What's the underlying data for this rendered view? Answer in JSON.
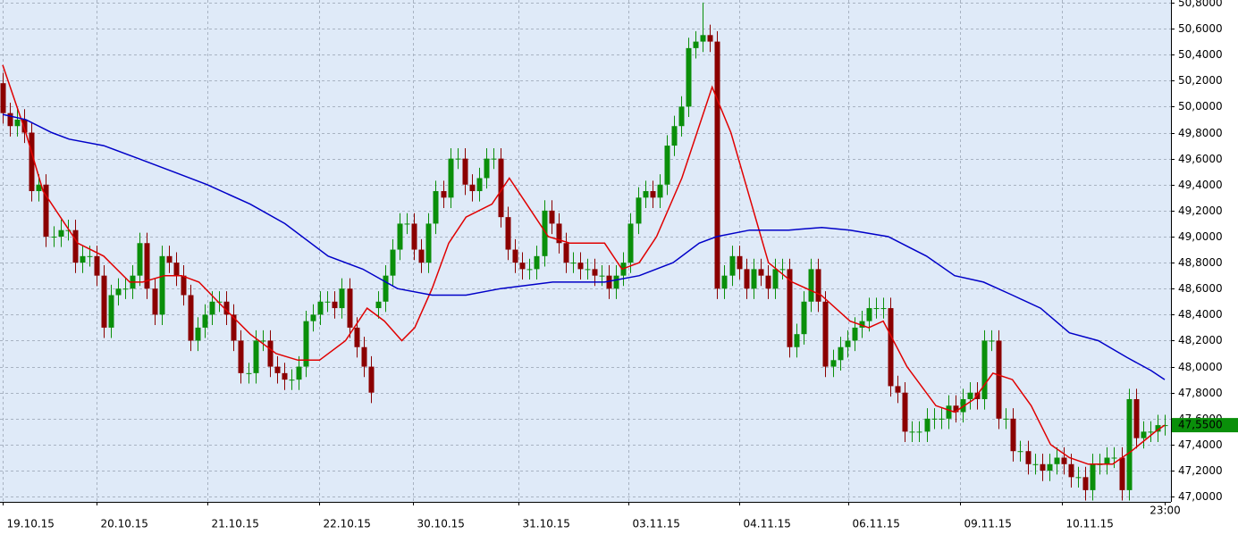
{
  "chart_data": {
    "type": "candlestick",
    "ylim": [
      46.96,
      50.82
    ],
    "xlim": [
      -0.37,
      161.87
    ],
    "grid": true,
    "up_color": "#0a8f0a",
    "down_color": "#8b0000",
    "yticks": [
      {
        "value": 47.0,
        "label": "47,0000"
      },
      {
        "value": 47.2,
        "label": "47,2000"
      },
      {
        "value": 47.4,
        "label": "47,4000"
      },
      {
        "value": 47.6,
        "label": "47,6000"
      },
      {
        "value": 47.8,
        "label": "47,8000"
      },
      {
        "value": 48.0,
        "label": "48,0000"
      },
      {
        "value": 48.2,
        "label": "48,2000"
      },
      {
        "value": 48.4,
        "label": "48,4000"
      },
      {
        "value": 48.6,
        "label": "48,6000"
      },
      {
        "value": 48.8,
        "label": "48,8000"
      },
      {
        "value": 49.0,
        "label": "49,0000"
      },
      {
        "value": 49.2,
        "label": "49,2000"
      },
      {
        "value": 49.4,
        "label": "49,4000"
      },
      {
        "value": 49.6,
        "label": "49,6000"
      },
      {
        "value": 49.8,
        "label": "49,8000"
      },
      {
        "value": 50.0,
        "label": "50,0000"
      },
      {
        "value": 50.2,
        "label": "50,2000"
      },
      {
        "value": 50.4,
        "label": "50,4000"
      },
      {
        "value": 50.6,
        "label": "50,6000"
      },
      {
        "value": 50.8,
        "label": "50,8000"
      }
    ],
    "xticks": [
      {
        "value": 0,
        "label": "19.10.15"
      },
      {
        "value": 13,
        "label": "20.10.15"
      },
      {
        "value": 28.4,
        "label": "21.10.15"
      },
      {
        "value": 43.9,
        "label": "22.10.15"
      },
      {
        "value": 56.9,
        "label": "30.10.15"
      },
      {
        "value": 71.5,
        "label": "31.10.15"
      },
      {
        "value": 86.7,
        "label": "03.11.15"
      },
      {
        "value": 102.1,
        "label": "04.11.15"
      },
      {
        "value": 117.1,
        "label": "06.11.15"
      },
      {
        "value": 132.6,
        "label": "09.11.15"
      },
      {
        "value": 146.7,
        "label": "10.11.15"
      },
      {
        "value": 161,
        "label": "23:00"
      }
    ],
    "last_price": {
      "value": 47.55,
      "label": "47,5500",
      "color": "#0a8f0a"
    },
    "open": [
      50.18,
      49.95,
      49.85,
      49.9,
      49.8,
      49.35,
      49.4,
      49.0,
      49.0,
      49.05,
      49.05,
      48.8,
      48.85,
      48.85,
      48.7,
      48.3,
      48.55,
      48.6,
      48.6,
      48.7,
      48.95,
      48.6,
      48.4,
      48.85,
      48.8,
      48.7,
      48.55,
      48.2,
      48.3,
      48.4,
      48.5,
      48.5,
      48.4,
      48.2,
      47.95,
      47.95,
      48.2,
      48.2,
      48.0,
      47.95,
      47.9,
      47.9,
      48.0,
      48.35,
      48.4,
      48.5,
      48.5,
      48.45,
      48.6,
      48.3,
      48.15,
      48.0,
      48.45,
      48.5,
      48.7,
      48.9,
      49.1,
      49.1,
      48.9,
      48.8,
      49.1,
      49.35,
      49.3,
      49.6,
      49.6,
      49.4,
      49.35,
      49.45,
      49.6,
      49.6,
      49.15,
      48.9,
      48.8,
      48.75,
      48.75,
      48.85,
      49.2,
      49.1,
      48.95,
      48.8,
      48.8,
      48.75,
      48.75,
      48.7,
      48.7,
      48.6,
      48.7,
      48.8,
      49.1,
      49.3,
      49.35,
      49.3,
      49.4,
      49.7,
      49.85,
      50.0,
      50.45,
      50.5,
      50.55,
      50.5,
      48.6,
      48.7,
      48.85,
      48.75,
      48.6,
      48.75,
      48.7,
      48.6,
      48.75,
      48.75,
      48.15,
      48.25,
      48.5,
      48.75,
      48.5,
      48.0,
      48.05,
      48.15,
      48.2,
      48.3,
      48.35,
      48.45,
      48.45,
      48.45,
      47.85,
      47.8,
      47.5,
      47.5,
      47.5,
      47.6,
      47.6,
      47.6,
      47.7,
      47.65,
      47.75,
      47.8,
      47.75,
      48.2,
      48.2,
      47.6,
      47.6,
      47.35,
      47.35,
      47.25,
      47.25,
      47.2,
      47.25,
      47.3,
      47.25,
      47.15,
      47.15,
      47.05,
      47.25,
      47.25,
      47.3,
      47.3,
      47.05,
      47.75,
      47.45,
      47.5,
      47.5,
      47.55
    ],
    "high": [
      50.26,
      50.03,
      49.98,
      49.98,
      49.88,
      49.48,
      49.48,
      49.08,
      49.13,
      49.13,
      49.13,
      48.93,
      48.93,
      48.93,
      48.78,
      48.63,
      48.68,
      48.68,
      48.78,
      49.03,
      49.03,
      48.68,
      48.93,
      48.93,
      48.88,
      48.78,
      48.63,
      48.38,
      48.48,
      48.58,
      48.58,
      48.58,
      48.48,
      48.28,
      48.03,
      48.28,
      48.28,
      48.28,
      48.08,
      48.03,
      47.98,
      48.08,
      48.43,
      48.48,
      48.58,
      48.58,
      48.58,
      48.68,
      48.68,
      48.38,
      48.23,
      48.08,
      48.58,
      48.78,
      48.98,
      49.18,
      49.18,
      49.18,
      48.98,
      49.18,
      49.43,
      49.43,
      49.68,
      49.68,
      49.68,
      49.48,
      49.53,
      49.68,
      49.68,
      49.68,
      49.23,
      48.98,
      48.88,
      48.83,
      48.93,
      49.28,
      49.28,
      49.18,
      49.03,
      48.88,
      48.88,
      48.83,
      48.83,
      48.78,
      48.78,
      48.78,
      48.88,
      49.18,
      49.38,
      49.43,
      49.43,
      49.48,
      49.78,
      49.93,
      50.08,
      50.53,
      50.58,
      50.8,
      50.63,
      50.58,
      48.78,
      48.93,
      48.93,
      48.83,
      48.83,
      48.83,
      48.78,
      48.83,
      48.83,
      48.83,
      48.33,
      48.58,
      48.83,
      48.83,
      48.58,
      48.13,
      48.23,
      48.28,
      48.38,
      48.43,
      48.53,
      48.53,
      48.53,
      48.53,
      47.93,
      47.88,
      47.58,
      47.58,
      47.68,
      47.68,
      47.68,
      47.78,
      47.78,
      47.83,
      47.88,
      47.88,
      48.28,
      48.28,
      48.28,
      47.68,
      47.68,
      47.43,
      47.43,
      47.33,
      47.33,
      47.33,
      47.38,
      47.38,
      47.33,
      47.23,
      47.23,
      47.33,
      47.33,
      47.38,
      47.38,
      47.38,
      47.83,
      47.83,
      47.58,
      47.58,
      47.63,
      47.63
    ],
    "low": [
      49.87,
      49.77,
      49.77,
      49.72,
      49.27,
      49.27,
      48.92,
      48.92,
      48.92,
      48.97,
      48.72,
      48.72,
      48.77,
      48.62,
      48.22,
      48.22,
      48.47,
      48.52,
      48.52,
      48.62,
      48.52,
      48.32,
      48.32,
      48.72,
      48.62,
      48.47,
      48.12,
      48.12,
      48.22,
      48.32,
      48.42,
      48.32,
      48.12,
      47.87,
      47.87,
      47.87,
      48.12,
      47.92,
      47.87,
      47.82,
      47.82,
      47.82,
      47.92,
      48.27,
      48.32,
      48.42,
      48.37,
      48.37,
      48.22,
      48.07,
      47.92,
      47.72,
      48.37,
      48.42,
      48.62,
      48.82,
      49.02,
      48.82,
      48.72,
      48.72,
      49.02,
      49.22,
      49.22,
      49.52,
      49.32,
      49.27,
      49.27,
      49.37,
      49.52,
      49.07,
      48.82,
      48.72,
      48.67,
      48.67,
      48.67,
      48.77,
      49.02,
      48.87,
      48.72,
      48.72,
      48.67,
      48.67,
      48.62,
      48.62,
      48.52,
      48.52,
      48.62,
      48.72,
      49.02,
      49.22,
      49.22,
      49.22,
      49.32,
      49.62,
      49.77,
      49.92,
      50.37,
      50.42,
      50.42,
      48.52,
      48.52,
      48.62,
      48.67,
      48.52,
      48.52,
      48.62,
      48.52,
      48.52,
      48.67,
      48.07,
      48.07,
      48.17,
      48.42,
      48.42,
      47.92,
      47.92,
      47.97,
      48.07,
      48.12,
      48.22,
      48.27,
      48.37,
      48.37,
      47.77,
      47.72,
      47.42,
      47.42,
      47.42,
      47.42,
      47.52,
      47.52,
      47.52,
      47.57,
      47.57,
      47.67,
      47.67,
      47.67,
      48.12,
      47.52,
      47.52,
      47.27,
      47.27,
      47.17,
      47.17,
      47.12,
      47.12,
      47.17,
      47.17,
      47.07,
      47.07,
      46.97,
      46.97,
      47.17,
      47.17,
      47.22,
      46.97,
      46.97,
      47.37,
      47.37,
      47.42,
      47.42,
      47.47
    ],
    "close": [
      49.95,
      49.85,
      49.9,
      49.8,
      49.35,
      49.4,
      49.0,
      49.0,
      49.05,
      49.05,
      48.8,
      48.85,
      48.85,
      48.7,
      48.3,
      48.55,
      48.6,
      48.6,
      48.7,
      48.95,
      48.6,
      48.4,
      48.85,
      48.8,
      48.7,
      48.55,
      48.2,
      48.3,
      48.4,
      48.5,
      48.5,
      48.4,
      48.2,
      47.95,
      47.95,
      48.2,
      48.2,
      48.0,
      47.95,
      47.9,
      47.9,
      48.0,
      48.35,
      48.4,
      48.5,
      48.5,
      48.45,
      48.6,
      48.3,
      48.15,
      48.0,
      47.8,
      48.5,
      48.7,
      48.9,
      49.1,
      49.1,
      48.9,
      48.8,
      49.1,
      49.35,
      49.3,
      49.6,
      49.6,
      49.4,
      49.35,
      49.45,
      49.6,
      49.6,
      49.15,
      48.9,
      48.8,
      48.75,
      48.75,
      48.85,
      49.2,
      49.1,
      48.95,
      48.8,
      48.8,
      48.75,
      48.75,
      48.7,
      48.7,
      48.6,
      48.7,
      48.8,
      49.1,
      49.3,
      49.35,
      49.3,
      49.4,
      49.7,
      49.85,
      50.0,
      50.45,
      50.5,
      50.55,
      50.5,
      48.6,
      48.7,
      48.85,
      48.75,
      48.6,
      48.75,
      48.7,
      48.6,
      48.75,
      48.75,
      48.15,
      48.25,
      48.5,
      48.75,
      48.5,
      48.0,
      48.05,
      48.15,
      48.2,
      48.3,
      48.35,
      48.45,
      48.45,
      48.45,
      47.85,
      47.8,
      47.5,
      47.5,
      47.5,
      47.6,
      47.6,
      47.6,
      47.7,
      47.65,
      47.75,
      47.8,
      47.75,
      48.2,
      48.2,
      47.6,
      47.6,
      47.35,
      47.35,
      47.25,
      47.25,
      47.2,
      47.25,
      47.3,
      47.25,
      47.15,
      47.15,
      47.05,
      47.25,
      47.25,
      47.3,
      47.3,
      47.05,
      47.75,
      47.45,
      47.5,
      47.5,
      47.55,
      47.55
    ],
    "series": [
      {
        "color": "#e00000",
        "x": [
          0,
          3.2,
          5.6,
          10.4,
          14.0,
          17.6,
          19.4,
          22.4,
          24.8,
          27.2,
          30.7,
          34.3,
          37.9,
          40.9,
          43.9,
          47.5,
          50.5,
          52.9,
          55.3,
          57.1,
          59.5,
          61.8,
          64.2,
          67.8,
          70.2,
          72.6,
          75.6,
          78.6,
          83.4,
          85.8,
          88.2,
          90.6,
          94.1,
          98.3,
          100.9,
          103.5,
          106.1,
          109.4,
          113.4,
          117.4,
          120.0,
          122.0,
          125.3,
          129.3,
          131.9,
          134.6,
          137.2,
          139.9,
          142.5,
          145.2,
          147.8,
          150.4,
          153.8,
          156.4,
          159.7,
          161
        ],
        "values": [
          50.32,
          49.8,
          49.35,
          48.95,
          48.85,
          48.65,
          48.65,
          48.7,
          48.7,
          48.65,
          48.45,
          48.25,
          48.1,
          48.05,
          48.05,
          48.2,
          48.45,
          48.35,
          48.2,
          48.3,
          48.6,
          48.95,
          49.15,
          49.25,
          49.45,
          49.25,
          49.0,
          48.95,
          48.95,
          48.75,
          48.8,
          49.0,
          49.45,
          50.15,
          49.8,
          49.3,
          48.8,
          48.65,
          48.55,
          48.35,
          48.3,
          48.35,
          48.0,
          47.7,
          47.65,
          47.75,
          47.95,
          47.9,
          47.7,
          47.4,
          47.3,
          47.25,
          47.25,
          47.35,
          47.5,
          47.55
        ]
      },
      {
        "color": "#0000c8",
        "x": [
          0,
          3.2,
          6.8,
          9.2,
          14.0,
          18.8,
          23.6,
          28.3,
          34.3,
          39.1,
          45.1,
          49.9,
          54.7,
          59.5,
          64.2,
          69.0,
          76.2,
          83.4,
          88.2,
          92.9,
          96.5,
          98.9,
          103.5,
          108.9,
          113.5,
          117.4,
          122.7,
          128.0,
          131.9,
          135.9,
          139.9,
          143.8,
          147.8,
          151.8,
          155.8,
          159.1,
          161
        ],
        "values": [
          49.94,
          49.9,
          49.8,
          49.75,
          49.7,
          49.6,
          49.5,
          49.4,
          49.25,
          49.1,
          48.85,
          48.75,
          48.6,
          48.55,
          48.55,
          48.6,
          48.65,
          48.65,
          48.7,
          48.8,
          48.95,
          49.0,
          49.05,
          49.05,
          49.07,
          49.05,
          49.0,
          48.85,
          48.7,
          48.65,
          48.55,
          48.45,
          48.26,
          48.2,
          48.07,
          47.97,
          47.9
        ]
      }
    ]
  }
}
